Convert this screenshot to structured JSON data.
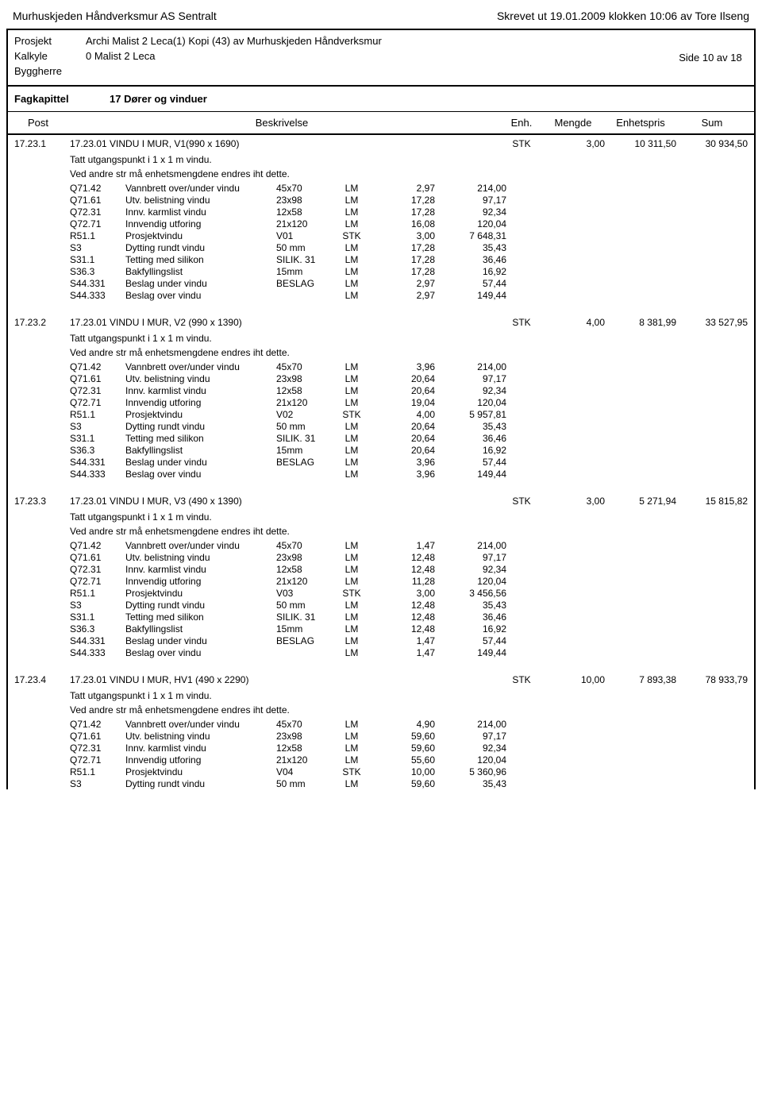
{
  "header": {
    "company": "Murhuskjeden Håndverksmur AS Sentralt",
    "printed": "Skrevet ut 19.01.2009 klokken 10:06 av Tore Ilseng"
  },
  "info": {
    "prosjekt_label": "Prosjekt",
    "prosjekt_value": "Archi Malist 2 Leca(1) Kopi (43) av Murhuskjeden Håndverksmur",
    "kalkyle_label": "Kalkyle",
    "kalkyle_value": "0 Malist 2 Leca",
    "byggherre_label": "Byggherre",
    "side": "Side 10 av 18"
  },
  "fag": {
    "label": "Fagkapittel",
    "value": "17 Dører og vinduer"
  },
  "columns": {
    "post": "Post",
    "beskrivelse": "Beskrivelse",
    "enh": "Enh.",
    "mengde": "Mengde",
    "enhetspris": "Enhetspris",
    "sum": "Sum"
  },
  "sections": [
    {
      "post": "17.23.1",
      "desc": "17.23.01 VINDU I MUR, V1(990 x 1690)",
      "unit": "STK",
      "mengde": "3,00",
      "price": "10 311,50",
      "sum": "30 934,50",
      "note1": "Tatt utgangspunkt i 1 x 1 m vindu.",
      "note2": "Ved andre str må enhetsmengdene endres iht dette.",
      "subs": [
        {
          "code": "Q71.42",
          "desc": "Vannbrett over/under vindu",
          "spec": "45x70",
          "unit": "LM",
          "mengde": "2,97",
          "price": "214,00"
        },
        {
          "code": "Q71.61",
          "desc": "Utv. belistning vindu",
          "spec": "23x98",
          "unit": "LM",
          "mengde": "17,28",
          "price": "97,17"
        },
        {
          "code": "Q72.31",
          "desc": "Innv. karmlist vindu",
          "spec": "12x58",
          "unit": "LM",
          "mengde": "17,28",
          "price": "92,34"
        },
        {
          "code": "Q72.71",
          "desc": "Innvendig utforing",
          "spec": "21x120",
          "unit": "LM",
          "mengde": "16,08",
          "price": "120,04"
        },
        {
          "code": "R51.1",
          "desc": "Prosjektvindu",
          "spec": "V01",
          "unit": "STK",
          "mengde": "3,00",
          "price": "7 648,31"
        },
        {
          "code": "S3",
          "desc": "Dytting rundt vindu",
          "spec": "50 mm",
          "unit": "LM",
          "mengde": "17,28",
          "price": "35,43"
        },
        {
          "code": "S31.1",
          "desc": "Tetting med  silikon",
          "spec": "SILIK. 31",
          "unit": "LM",
          "mengde": "17,28",
          "price": "36,46"
        },
        {
          "code": "S36.3",
          "desc": "Bakfyllingslist",
          "spec": "15mm",
          "unit": "LM",
          "mengde": "17,28",
          "price": "16,92"
        },
        {
          "code": "S44.331",
          "desc": "Beslag under vindu",
          "spec": "BESLAG",
          "unit": "LM",
          "mengde": "2,97",
          "price": "57,44"
        },
        {
          "code": "S44.333",
          "desc": "Beslag over vindu",
          "spec": "",
          "unit": "LM",
          "mengde": "2,97",
          "price": "149,44"
        }
      ]
    },
    {
      "post": "17.23.2",
      "desc": "17.23.01 VINDU I MUR, V2 (990 x 1390)",
      "unit": "STK",
      "mengde": "4,00",
      "price": "8 381,99",
      "sum": "33 527,95",
      "note1": "Tatt utgangspunkt i 1 x 1 m vindu.",
      "note2": "Ved andre str må enhetsmengdene endres iht dette.",
      "subs": [
        {
          "code": "Q71.42",
          "desc": "Vannbrett over/under vindu",
          "spec": "45x70",
          "unit": "LM",
          "mengde": "3,96",
          "price": "214,00"
        },
        {
          "code": "Q71.61",
          "desc": "Utv. belistning vindu",
          "spec": "23x98",
          "unit": "LM",
          "mengde": "20,64",
          "price": "97,17"
        },
        {
          "code": "Q72.31",
          "desc": "Innv. karmlist vindu",
          "spec": "12x58",
          "unit": "LM",
          "mengde": "20,64",
          "price": "92,34"
        },
        {
          "code": "Q72.71",
          "desc": "Innvendig utforing",
          "spec": "21x120",
          "unit": "LM",
          "mengde": "19,04",
          "price": "120,04"
        },
        {
          "code": "R51.1",
          "desc": "Prosjektvindu",
          "spec": "V02",
          "unit": "STK",
          "mengde": "4,00",
          "price": "5 957,81"
        },
        {
          "code": "S3",
          "desc": "Dytting rundt vindu",
          "spec": "50 mm",
          "unit": "LM",
          "mengde": "20,64",
          "price": "35,43"
        },
        {
          "code": "S31.1",
          "desc": "Tetting med  silikon",
          "spec": "SILIK. 31",
          "unit": "LM",
          "mengde": "20,64",
          "price": "36,46"
        },
        {
          "code": "S36.3",
          "desc": "Bakfyllingslist",
          "spec": "15mm",
          "unit": "LM",
          "mengde": "20,64",
          "price": "16,92"
        },
        {
          "code": "S44.331",
          "desc": "Beslag under vindu",
          "spec": "BESLAG",
          "unit": "LM",
          "mengde": "3,96",
          "price": "57,44"
        },
        {
          "code": "S44.333",
          "desc": "Beslag over vindu",
          "spec": "",
          "unit": "LM",
          "mengde": "3,96",
          "price": "149,44"
        }
      ]
    },
    {
      "post": "17.23.3",
      "desc": "17.23.01 VINDU I MUR, V3 (490 x 1390)",
      "unit": "STK",
      "mengde": "3,00",
      "price": "5 271,94",
      "sum": "15 815,82",
      "note1": "Tatt utgangspunkt i 1 x 1 m vindu.",
      "note2": "Ved andre str må enhetsmengdene endres iht dette.",
      "subs": [
        {
          "code": "Q71.42",
          "desc": "Vannbrett over/under vindu",
          "spec": "45x70",
          "unit": "LM",
          "mengde": "1,47",
          "price": "214,00"
        },
        {
          "code": "Q71.61",
          "desc": "Utv. belistning vindu",
          "spec": "23x98",
          "unit": "LM",
          "mengde": "12,48",
          "price": "97,17"
        },
        {
          "code": "Q72.31",
          "desc": "Innv. karmlist vindu",
          "spec": "12x58",
          "unit": "LM",
          "mengde": "12,48",
          "price": "92,34"
        },
        {
          "code": "Q72.71",
          "desc": "Innvendig utforing",
          "spec": "21x120",
          "unit": "LM",
          "mengde": "11,28",
          "price": "120,04"
        },
        {
          "code": "R51.1",
          "desc": "Prosjektvindu",
          "spec": "V03",
          "unit": "STK",
          "mengde": "3,00",
          "price": "3 456,56"
        },
        {
          "code": "S3",
          "desc": "Dytting rundt vindu",
          "spec": "50 mm",
          "unit": "LM",
          "mengde": "12,48",
          "price": "35,43"
        },
        {
          "code": "S31.1",
          "desc": "Tetting med  silikon",
          "spec": "SILIK. 31",
          "unit": "LM",
          "mengde": "12,48",
          "price": "36,46"
        },
        {
          "code": "S36.3",
          "desc": "Bakfyllingslist",
          "spec": "15mm",
          "unit": "LM",
          "mengde": "12,48",
          "price": "16,92"
        },
        {
          "code": "S44.331",
          "desc": "Beslag under vindu",
          "spec": "BESLAG",
          "unit": "LM",
          "mengde": "1,47",
          "price": "57,44"
        },
        {
          "code": "S44.333",
          "desc": "Beslag over vindu",
          "spec": "",
          "unit": "LM",
          "mengde": "1,47",
          "price": "149,44"
        }
      ]
    },
    {
      "post": "17.23.4",
      "desc": "17.23.01 VINDU I MUR, HV1 (490 x 2290)",
      "unit": "STK",
      "mengde": "10,00",
      "price": "7 893,38",
      "sum": "78 933,79",
      "note1": "Tatt utgangspunkt i 1 x 1 m vindu.",
      "note2": "Ved andre str må enhetsmengdene endres iht dette.",
      "subs": [
        {
          "code": "Q71.42",
          "desc": "Vannbrett over/under vindu",
          "spec": "45x70",
          "unit": "LM",
          "mengde": "4,90",
          "price": "214,00"
        },
        {
          "code": "Q71.61",
          "desc": "Utv. belistning vindu",
          "spec": "23x98",
          "unit": "LM",
          "mengde": "59,60",
          "price": "97,17"
        },
        {
          "code": "Q72.31",
          "desc": "Innv. karmlist vindu",
          "spec": "12x58",
          "unit": "LM",
          "mengde": "59,60",
          "price": "92,34"
        },
        {
          "code": "Q72.71",
          "desc": "Innvendig utforing",
          "spec": "21x120",
          "unit": "LM",
          "mengde": "55,60",
          "price": "120,04"
        },
        {
          "code": "R51.1",
          "desc": "Prosjektvindu",
          "spec": "V04",
          "unit": "STK",
          "mengde": "10,00",
          "price": "5 360,96"
        },
        {
          "code": "S3",
          "desc": "Dytting rundt vindu",
          "spec": "50 mm",
          "unit": "LM",
          "mengde": "59,60",
          "price": "35,43"
        }
      ]
    }
  ]
}
